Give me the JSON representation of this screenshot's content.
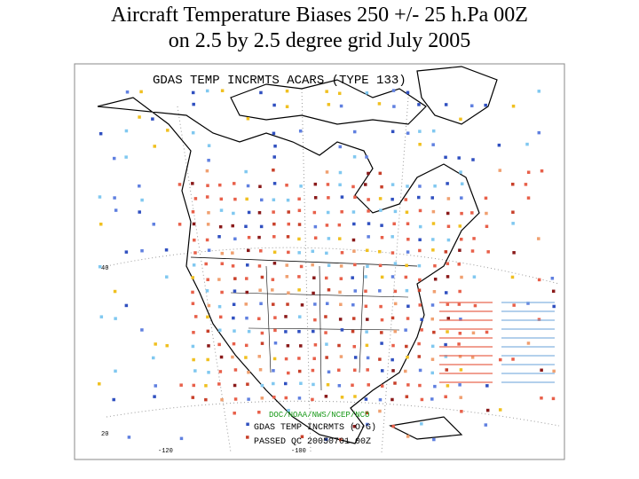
{
  "title": [
    "Aircraft Temperature Biases 250 +/- 25 h.Pa 00Z",
    "on 2.5 by 2.5 degree grid July 2005"
  ],
  "map": {
    "header": "GDAS TEMP INCRMTS ACARS (TYPE 133)",
    "credit": "DOC/NOAA/NWS/NCEP/NCO",
    "subheader": "GDAS TEMP INCRMTS (O-G)",
    "timestamp": "PASSED QC 20050701 00Z",
    "lat_labels": [
      "40",
      "20"
    ],
    "lon_labels": [
      "-120",
      "-100"
    ]
  }
}
